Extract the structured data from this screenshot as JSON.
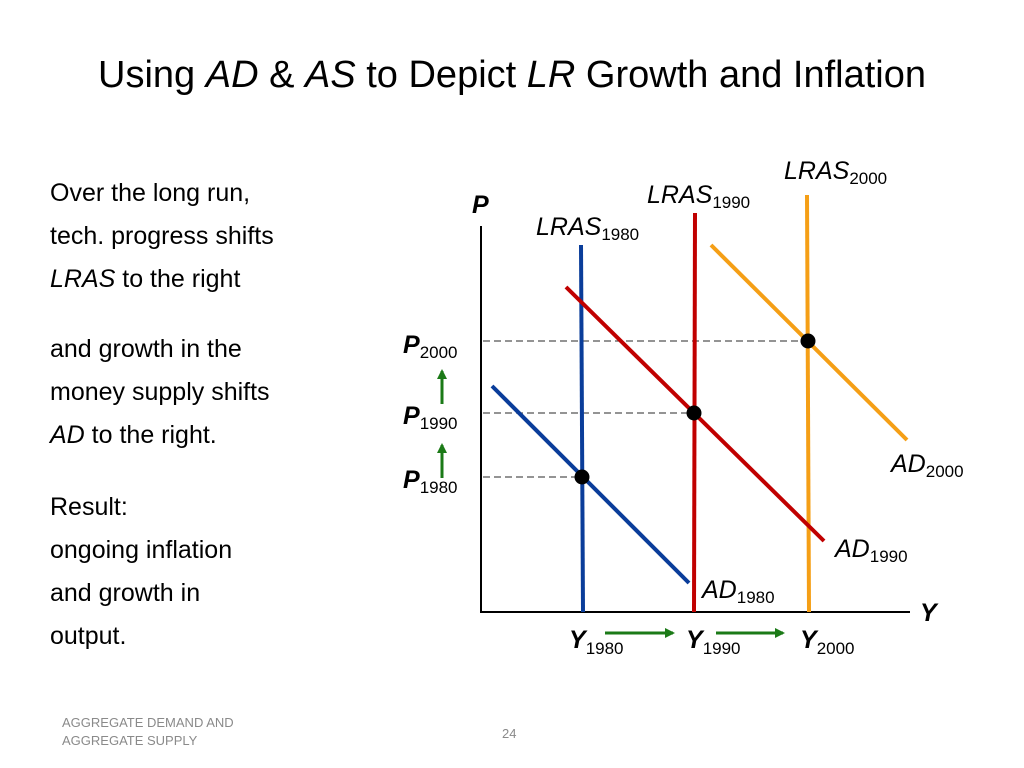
{
  "title": {
    "prefix": "Using ",
    "ad": "AD",
    "amp": " & ",
    "as": "AS",
    "mid": " to Depict ",
    "lr": "LR",
    "suffix": " Growth and Inflation"
  },
  "text": {
    "para1": {
      "line1": "Over the long run,",
      "line2": "tech. progress shifts",
      "line3_italic": "LRAS",
      "line3_rest": " to the right"
    },
    "para2": {
      "line1": "and growth in the",
      "line2": "money supply shifts",
      "line3_italic": "AD",
      "line3_rest": " to the right."
    },
    "para3": {
      "line1": "Result:",
      "line2": "ongoing inflation",
      "line3": "and growth in",
      "line4": "output."
    }
  },
  "diagram": {
    "axis_y_label": "P",
    "axis_x_label": "Y",
    "lras_base": "LRAS",
    "ad_base": "AD",
    "p_base": "P",
    "y_base": "Y",
    "years": [
      "1980",
      "1990",
      "2000"
    ],
    "colors": {
      "1980": "#0a3d9a",
      "1990": "#c00000",
      "2000": "#f59f16",
      "arrow": "#1b7a17",
      "axis": "#000000",
      "guide": "#555555"
    }
  },
  "footer": {
    "line1": "AGGREGATE DEMAND AND",
    "line2": "AGGREGATE SUPPLY",
    "page": "24"
  }
}
